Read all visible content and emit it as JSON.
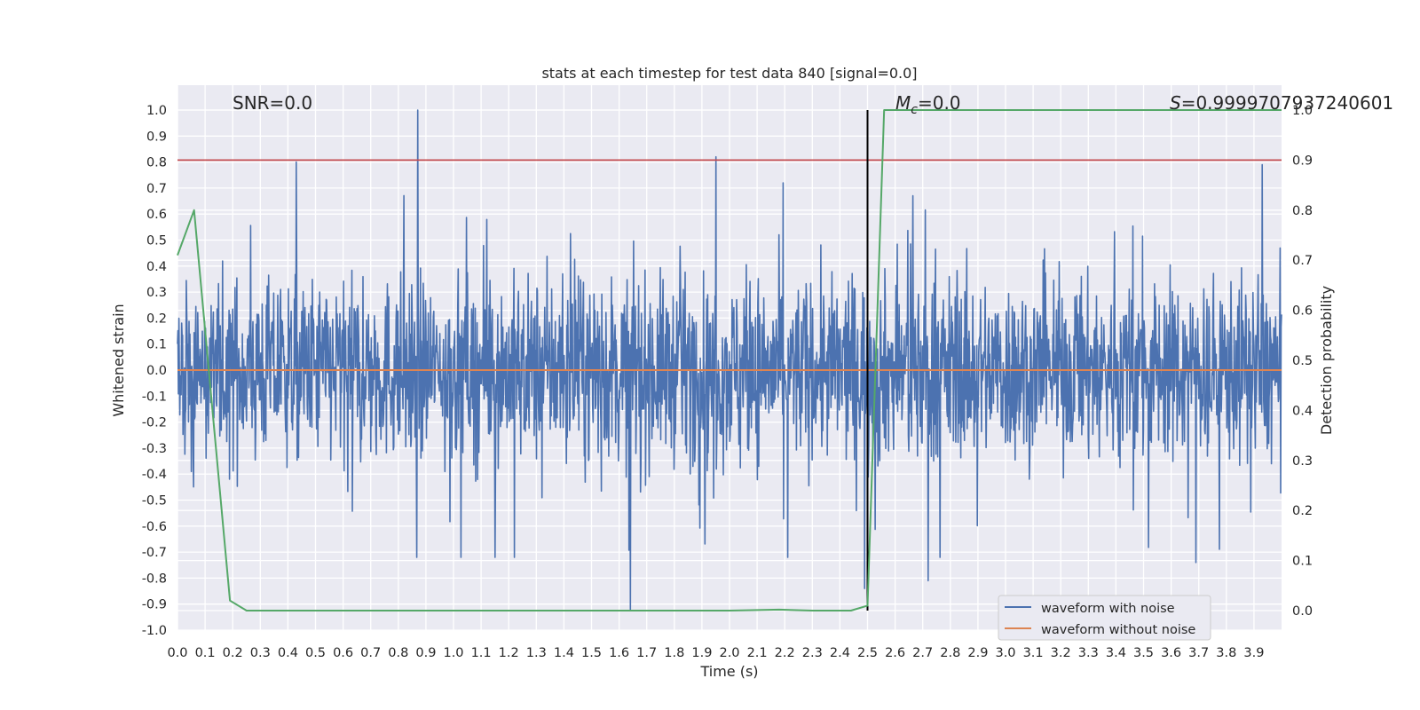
{
  "chart_data": {
    "type": "line",
    "title": "stats at each timestep for test data 840 [signal=0.0]",
    "xlabel": "Time (s)",
    "ylabel": "Whitened strain",
    "ylabel_right": "Detection probability",
    "xlim": [
      0.0,
      4.0
    ],
    "ylim": [
      -1.0,
      1.0
    ],
    "ylim_right": [
      0.0,
      1.0
    ],
    "xticks": [
      "0.0",
      "0.1",
      "0.2",
      "0.3",
      "0.4",
      "0.5",
      "0.6",
      "0.7",
      "0.8",
      "0.9",
      "1.0",
      "1.1",
      "1.2",
      "1.3",
      "1.4",
      "1.5",
      "1.6",
      "1.7",
      "1.8",
      "1.9",
      "2.0",
      "2.1",
      "2.2",
      "2.3",
      "2.4",
      "2.5",
      "2.6",
      "2.7",
      "2.8",
      "2.9",
      "3.0",
      "3.1",
      "3.2",
      "3.3",
      "3.4",
      "3.5",
      "3.6",
      "3.7",
      "3.8",
      "3.9"
    ],
    "yticks": [
      "1.0",
      "0.9",
      "0.8",
      "0.7",
      "0.6",
      "0.5",
      "0.4",
      "0.3",
      "0.2",
      "0.1",
      "0.0",
      "-0.1",
      "-0.2",
      "-0.3",
      "-0.4",
      "-0.5",
      "-0.6",
      "-0.7",
      "-0.8",
      "-0.9",
      "-1.0"
    ],
    "yticks_right": [
      "1.0",
      "0.9",
      "0.8",
      "0.7",
      "0.6",
      "0.5",
      "0.4",
      "0.3",
      "0.2",
      "0.1",
      "0.0"
    ],
    "grid": true,
    "background": "#eaeaf2",
    "annotations": {
      "snr": "SNR=0.0",
      "mc_symbol": "M",
      "mc_sub": "c",
      "mc_value": "=0.0",
      "s_symbol": "S",
      "s_value": "=0.9999707937240601"
    },
    "threshold_line": {
      "axis": "right",
      "y": 0.9,
      "color": "#c44e52"
    },
    "vertical_marker": {
      "x": 2.5,
      "color": "#000000"
    },
    "legend": {
      "position": "lower-right",
      "entries": [
        {
          "label": "waveform with noise",
          "color": "#4c72b0"
        },
        {
          "label": "waveform without noise",
          "color": "#dd8452"
        }
      ]
    },
    "series": [
      {
        "name": "waveform with noise",
        "axis": "left",
        "color": "#4c72b0",
        "note_values": "noise-like waveform spanning the full time range; peaks listed",
        "peaks": [
          {
            "x": 0.87,
            "y": 1.0
          },
          {
            "x": 1.95,
            "y": 0.82
          },
          {
            "x": 0.43,
            "y": 0.8
          },
          {
            "x": 3.93,
            "y": 0.79
          },
          {
            "x": 1.64,
            "y": -0.92
          },
          {
            "x": 2.49,
            "y": -0.84
          },
          {
            "x": 2.72,
            "y": -0.81
          },
          {
            "x": 3.69,
            "y": -0.74
          }
        ]
      },
      {
        "name": "waveform without noise",
        "axis": "left",
        "color": "#dd8452",
        "x": [
          0.0,
          4.0
        ],
        "y": [
          0.0,
          0.0
        ]
      },
      {
        "axis": "right",
        "color": "#55a868",
        "x": [
          0.0,
          0.06,
          0.19,
          0.25,
          0.5,
          1.0,
          1.5,
          2.0,
          2.18,
          2.3,
          2.44,
          2.5,
          2.56,
          2.62,
          3.0,
          3.5,
          4.0
        ],
        "y": [
          0.71,
          0.8,
          0.02,
          0.0,
          0.0,
          0.0,
          0.0,
          0.0,
          0.002,
          0.0,
          0.0,
          0.01,
          1.0,
          1.0,
          1.0,
          1.0,
          1.0
        ]
      }
    ]
  }
}
